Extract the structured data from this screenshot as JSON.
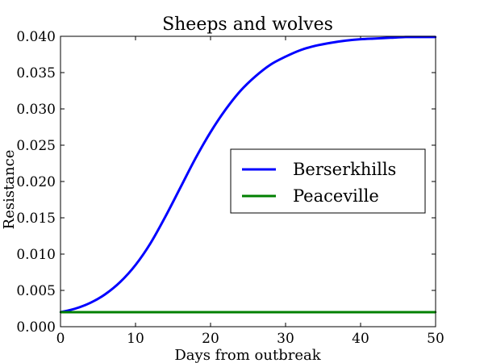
{
  "chart_data": {
    "type": "line",
    "title": "Sheeps and wolves",
    "xlabel": "Days from outbreak",
    "ylabel": "Resistance",
    "xlim": [
      0,
      50
    ],
    "ylim": [
      0,
      0.04
    ],
    "xticks": [
      0,
      10,
      20,
      30,
      40,
      50
    ],
    "xtick_labels": [
      "0",
      "10",
      "20",
      "30",
      "40",
      "50"
    ],
    "yticks": [
      0,
      0.005,
      0.01,
      0.015,
      0.02,
      0.025,
      0.03,
      0.035,
      0.04
    ],
    "ytick_labels": [
      "0.000",
      "0.005",
      "0.010",
      "0.015",
      "0.020",
      "0.025",
      "0.030",
      "0.035",
      "0.040"
    ],
    "grid": false,
    "legend": "center-right",
    "series": [
      {
        "name": "Berserkhills",
        "color": "#0000ff",
        "x": [
          0,
          2,
          4,
          6,
          8,
          10,
          12,
          14,
          16,
          18,
          20,
          22,
          24,
          26,
          28,
          30,
          32,
          34,
          36,
          38,
          40,
          42,
          44,
          46,
          48,
          50
        ],
        "y": [
          0.002,
          0.0025,
          0.0033,
          0.0045,
          0.0062,
          0.0085,
          0.0115,
          0.0152,
          0.0192,
          0.0232,
          0.0268,
          0.0299,
          0.0325,
          0.0345,
          0.0361,
          0.0372,
          0.0381,
          0.0387,
          0.0391,
          0.0394,
          0.0396,
          0.0397,
          0.0398,
          0.0399,
          0.0399,
          0.0399
        ]
      },
      {
        "name": "Peaceville",
        "color": "#008000",
        "x": [
          0,
          50
        ],
        "y": [
          0.002,
          0.002
        ]
      }
    ]
  }
}
